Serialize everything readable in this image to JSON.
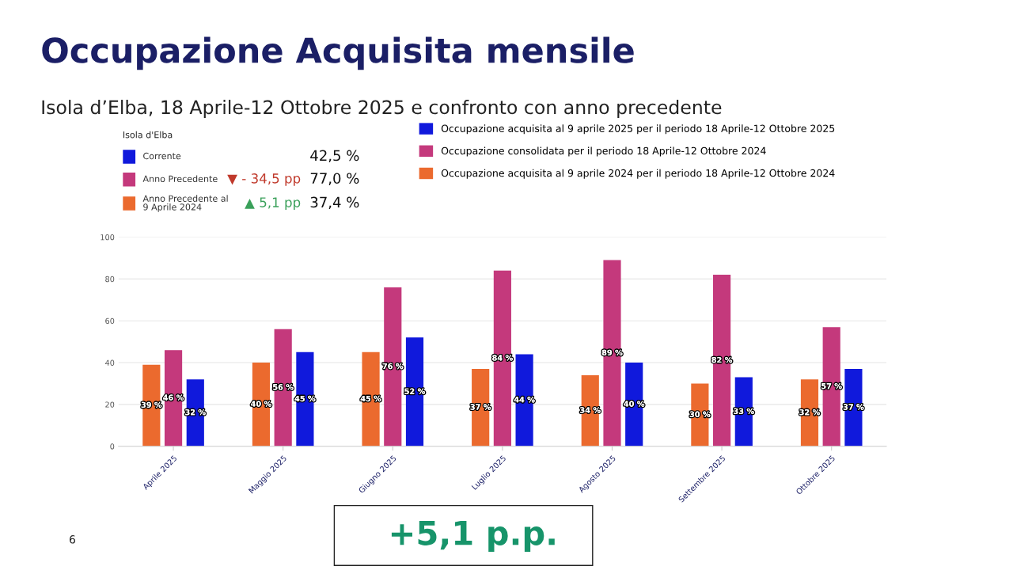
{
  "chart_data": {
    "type": "bar",
    "title": "Occupazione Acquisita mensile",
    "subtitle": "Isola d’Elba, 18 Aprile-12 Ottobre 2025 e confronto con anno precedente",
    "categories": [
      "Aprile 2025",
      "Maggio 2025",
      "Giugno 2025",
      "Luglio 2025",
      "Agosto 2025",
      "Settembre 2025",
      "Ottobre 2025"
    ],
    "series": [
      {
        "name": "Occupazione acquisita al 9 aprile 2024 per il periodo 18 Aprile-12 Ottobre 2024",
        "color": "#eb6a2e",
        "values": [
          39,
          40,
          45,
          37,
          34,
          30,
          32
        ],
        "value_labels": [
          "39 %",
          "40 %",
          "45 %",
          "37 %",
          "34 %",
          "30 %",
          "32 %"
        ]
      },
      {
        "name": "Occupazione consolidata per il periodo 18 Aprile-12 Ottobre 2024",
        "color": "#c4397c",
        "values": [
          46,
          56,
          76,
          84,
          89,
          82,
          57
        ],
        "value_labels": [
          "46 %",
          "56 %",
          "76 %",
          "84 %",
          "89 %",
          "82 %",
          "57 %"
        ]
      },
      {
        "name": "Occupazione acquisita al 9 aprile 2025 per il periodo 18 Aprile-12 Ottobre 2025",
        "color": "#1019dc",
        "values": [
          32,
          45,
          52,
          44,
          40,
          33,
          37
        ],
        "value_labels": [
          "32 %",
          "45 %",
          "52 %",
          "44 %",
          "40 %",
          "33 %",
          "37 %"
        ]
      }
    ],
    "ylim": [
      0,
      100
    ],
    "yticks": [
      0,
      20,
      40,
      60,
      80,
      100
    ],
    "grid": "y",
    "legend": "top",
    "annotations": [
      "Isola d'Elba",
      "Corrente",
      "42,5 %",
      "Anno Precedente",
      "▼ - 34,5 pp",
      "77,0 %",
      "Anno Precedente al\n9 Aprile 2024",
      "▲ 5,1 pp",
      "37,4 %",
      "+5,1 p.p.",
      "6"
    ]
  }
}
